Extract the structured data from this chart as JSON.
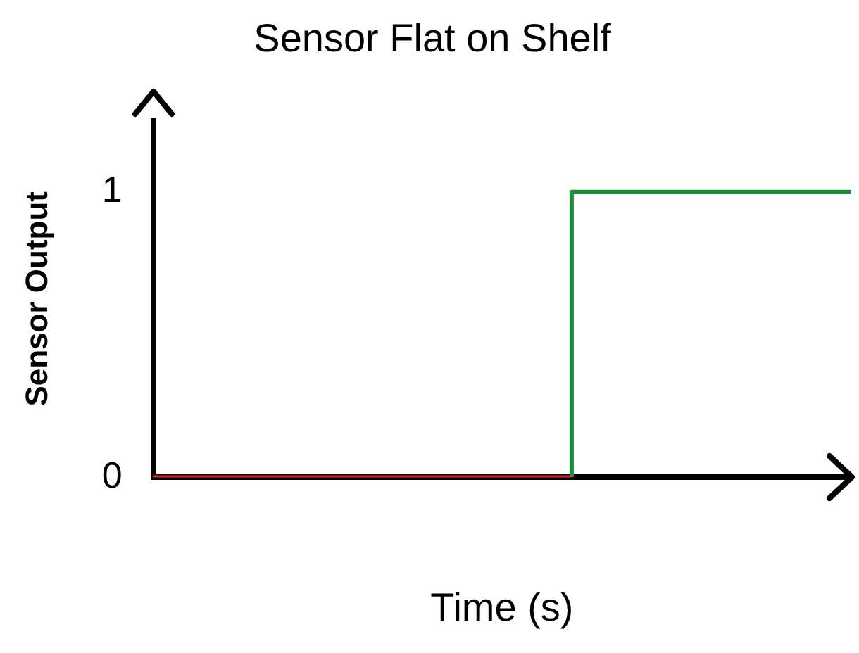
{
  "chart_data": {
    "type": "step",
    "title": "Sensor Flat on Shelf",
    "xlabel": "Time (s)",
    "ylabel": "Sensor Output",
    "categories": [
      null,
      null,
      null,
      null,
      null,
      null
    ],
    "ylim": [
      0,
      1.25
    ],
    "yticks": [
      0,
      1
    ],
    "grid": false,
    "legend": false,
    "marker": "none",
    "series": [
      {
        "color": "#e8202a",
        "values": [
          0,
          0,
          0,
          0,
          null,
          null
        ]
      },
      {
        "color": "#1e8c3a",
        "values": [
          null,
          null,
          null,
          0,
          1,
          1
        ]
      }
    ]
  }
}
